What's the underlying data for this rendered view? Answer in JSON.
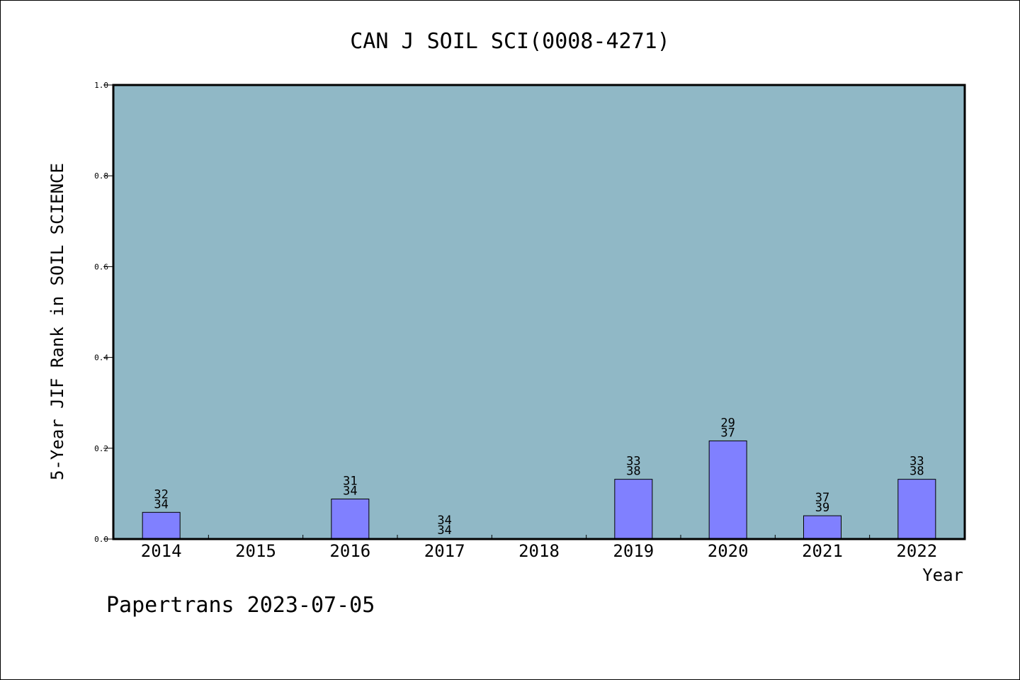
{
  "chart_data": {
    "type": "bar",
    "title": "CAN J SOIL SCI(0008-4271)",
    "xlabel": "Year",
    "ylabel": "5-Year JIF Rank in SOIL SCIENCE",
    "ylim": [
      0,
      1.0
    ],
    "yticks": [
      "0.0",
      "0.2",
      "0.4",
      "0.6",
      "0.8",
      "1.0"
    ],
    "categories": [
      "2014",
      "2015",
      "2016",
      "2017",
      "2018",
      "2019",
      "2020",
      "2021",
      "2022"
    ],
    "values": [
      0.0588,
      null,
      0.0882,
      0.0,
      null,
      0.1316,
      0.2162,
      0.0513,
      0.1316
    ],
    "labels_top": [
      "32",
      "",
      "31",
      "34",
      "",
      "33",
      "29",
      "37",
      "33"
    ],
    "labels_bottom": [
      "34",
      "",
      "34",
      "34",
      "",
      "38",
      "37",
      "39",
      "38"
    ],
    "grid": false,
    "colors": {
      "plot_background": "#90b8c6",
      "bar_fill": "#8080ff",
      "bar_stroke": "#000000"
    }
  },
  "footer": "Papertrans 2023-07-05"
}
